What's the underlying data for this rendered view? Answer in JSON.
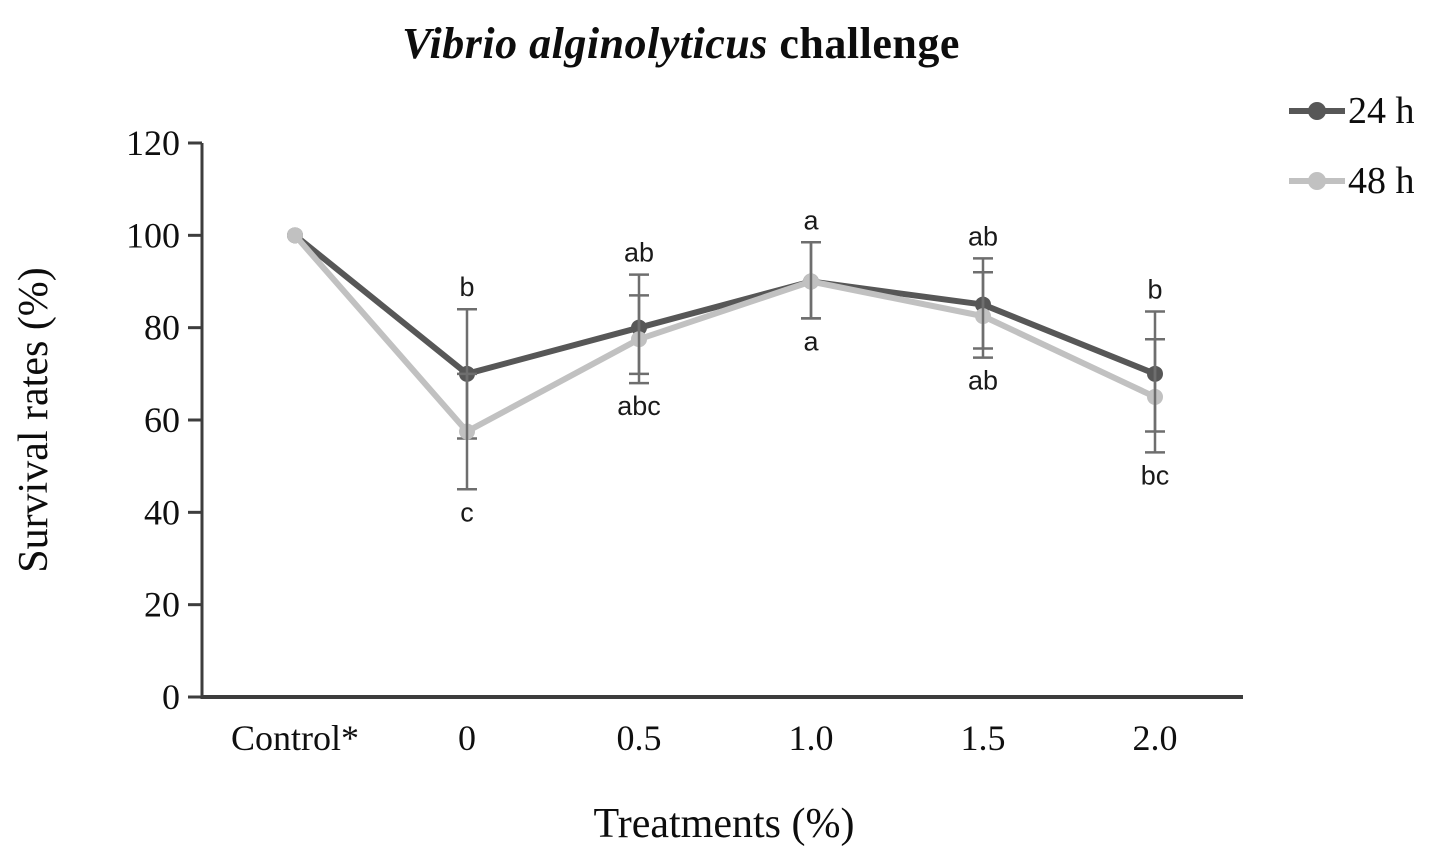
{
  "title": {
    "italic_part": "Vibrio alginolyticus",
    "normal_part": " challenge"
  },
  "chart_data": {
    "type": "line",
    "title": "Vibrio alginolyticus challenge",
    "xlabel": "Treatments (%)",
    "ylabel": "Survival rates (%)",
    "ylim": [
      0,
      120
    ],
    "yticks": [
      0,
      20,
      40,
      60,
      80,
      100,
      120
    ],
    "categories": [
      "Control*",
      "0",
      "0.5",
      "1.0",
      "1.5",
      "2.0"
    ],
    "legend_position": "top-right",
    "grid": false,
    "series": [
      {
        "name": "24 h",
        "color": "#575757",
        "values": [
          100,
          70,
          80,
          90,
          85,
          70
        ],
        "error_upper": [
          null,
          84,
          91.5,
          98.5,
          95,
          83.5
        ],
        "error_lower": [
          null,
          56,
          70,
          82,
          75.5,
          57.5
        ]
      },
      {
        "name": "48 h",
        "color": "#c1c1c1",
        "values": [
          100,
          57.5,
          77.5,
          90,
          82.5,
          65
        ],
        "error_upper": [
          null,
          70,
          87,
          98.5,
          92,
          77.5
        ],
        "error_lower": [
          null,
          45,
          68,
          82,
          73.5,
          53
        ]
      }
    ],
    "sig_letters_above": [
      "",
      "b",
      "ab",
      "a",
      "ab",
      "b"
    ],
    "sig_letters_below": [
      "",
      "c",
      "abc",
      "a",
      "ab",
      "bc"
    ],
    "colors": {
      "error_bar": "#6e6e6e",
      "axis": "#3d3d3d",
      "text": "#0f0f0f"
    }
  }
}
